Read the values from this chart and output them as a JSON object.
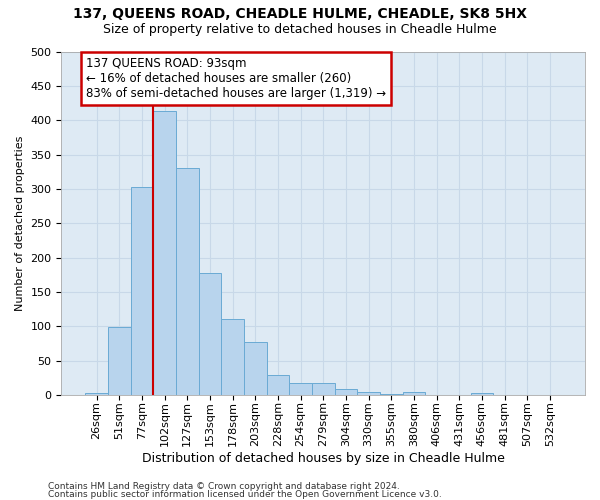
{
  "title1": "137, QUEENS ROAD, CHEADLE HULME, CHEADLE, SK8 5HX",
  "title2": "Size of property relative to detached houses in Cheadle Hulme",
  "xlabel": "Distribution of detached houses by size in Cheadle Hulme",
  "ylabel": "Number of detached properties",
  "bar_labels": [
    "26sqm",
    "51sqm",
    "77sqm",
    "102sqm",
    "127sqm",
    "153sqm",
    "178sqm",
    "203sqm",
    "228sqm",
    "254sqm",
    "279sqm",
    "304sqm",
    "330sqm",
    "355sqm",
    "380sqm",
    "406sqm",
    "431sqm",
    "456sqm",
    "481sqm",
    "507sqm",
    "532sqm"
  ],
  "bar_values": [
    3,
    99,
    303,
    413,
    330,
    178,
    111,
    77,
    29,
    17,
    17,
    9,
    5,
    2,
    5,
    0,
    0,
    3,
    0,
    0,
    0
  ],
  "bar_color": "#b8d4ed",
  "bar_edge_color": "#6aaad4",
  "vline_x": 2.5,
  "vline_color": "#cc0000",
  "annotation_line1": "137 QUEENS ROAD: 93sqm",
  "annotation_line2": "← 16% of detached houses are smaller (260)",
  "annotation_line3": "83% of semi-detached houses are larger (1,319) →",
  "annotation_box_facecolor": "#ffffff",
  "annotation_box_edgecolor": "#cc0000",
  "ylim": [
    0,
    500
  ],
  "yticks": [
    0,
    50,
    100,
    150,
    200,
    250,
    300,
    350,
    400,
    450,
    500
  ],
  "grid_color": "#c8d8e8",
  "plot_bg_color": "#deeaf4",
  "fig_bg_color": "#ffffff",
  "footer1": "Contains HM Land Registry data © Crown copyright and database right 2024.",
  "footer2": "Contains public sector information licensed under the Open Government Licence v3.0.",
  "title1_fontsize": 10,
  "title2_fontsize": 9,
  "xlabel_fontsize": 9,
  "ylabel_fontsize": 8,
  "tick_fontsize": 8,
  "footer_fontsize": 6.5
}
